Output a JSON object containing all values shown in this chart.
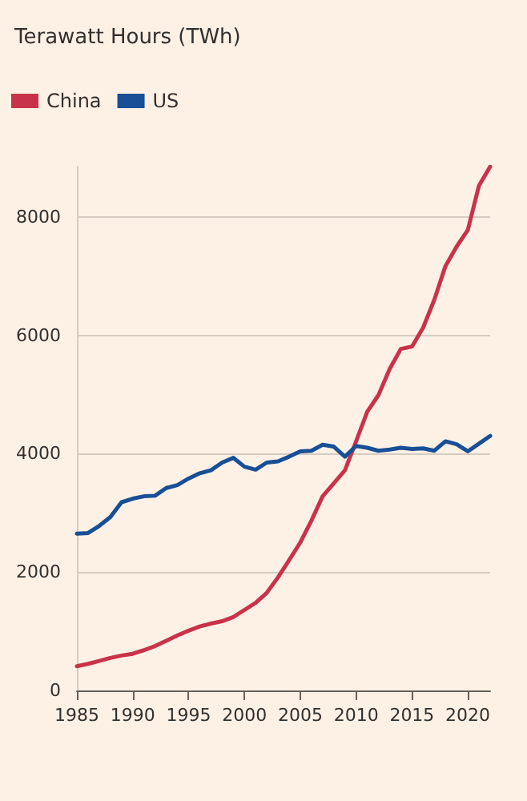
{
  "chart_data": {
    "type": "line",
    "title": "Terawatt Hours (TWh)",
    "x": [
      1985,
      1986,
      1987,
      1988,
      1989,
      1990,
      1991,
      1992,
      1993,
      1994,
      1995,
      1996,
      1997,
      1998,
      1999,
      2000,
      2001,
      2002,
      2003,
      2004,
      2005,
      2006,
      2007,
      2008,
      2009,
      2010,
      2011,
      2012,
      2013,
      2014,
      2015,
      2016,
      2017,
      2018,
      2019,
      2020,
      2021,
      2022
    ],
    "series": [
      {
        "name": "China",
        "color": "#c8334a",
        "values": [
          410,
          450,
          500,
          550,
          590,
          620,
          680,
          750,
          840,
          930,
          1010,
          1080,
          1130,
          1170,
          1240,
          1360,
          1480,
          1650,
          1910,
          2200,
          2500,
          2870,
          3280,
          3500,
          3720,
          4210,
          4710,
          4990,
          5430,
          5770,
          5810,
          6130,
          6600,
          7170,
          7500,
          7780,
          8530,
          8850
        ]
      },
      {
        "name": "US",
        "color": "#184f96",
        "values": [
          2650,
          2660,
          2780,
          2930,
          3180,
          3240,
          3280,
          3290,
          3420,
          3470,
          3580,
          3670,
          3720,
          3850,
          3930,
          3780,
          3730,
          3850,
          3870,
          3950,
          4040,
          4050,
          4150,
          4120,
          3950,
          4130,
          4100,
          4050,
          4070,
          4100,
          4080,
          4090,
          4050,
          4210,
          4160,
          4040,
          4170,
          4300
        ]
      }
    ],
    "xlim": [
      1985,
      2022
    ],
    "xticks": [
      1985,
      1990,
      1995,
      2000,
      2005,
      2010,
      2015,
      2020
    ],
    "ylim": [
      0,
      8850
    ],
    "yticks": [
      0,
      2000,
      4000,
      6000,
      8000
    ],
    "grid": "y",
    "legend": "top left",
    "marker": "none",
    "line_style": "solid"
  }
}
